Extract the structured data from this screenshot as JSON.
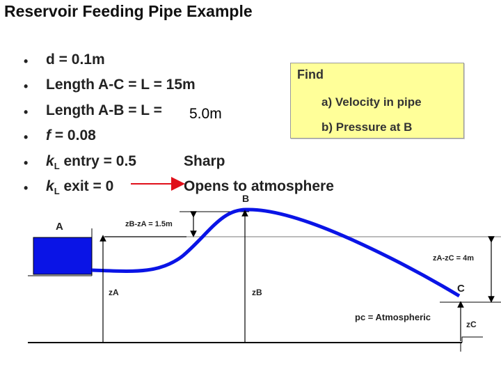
{
  "title": "Reservoir Feeding Pipe Example",
  "bullets": [
    {
      "prefix": "",
      "italic": "",
      "suffix": "d = 0.1m"
    },
    {
      "prefix": "",
      "italic": "",
      "suffix": "Length A-C = L = 15m"
    },
    {
      "prefix": "",
      "italic": "",
      "suffix": "Length A-B = L ="
    },
    {
      "prefix": "",
      "italic": "f",
      "suffix": " = 0.08"
    },
    {
      "prefix": "",
      "italic": "k",
      "sub": "L",
      "suffix": " entry = 0.5"
    },
    {
      "prefix": "",
      "italic": "k",
      "sub": "L",
      "suffix": " exit = 0"
    }
  ],
  "overlay_value": "5.0m",
  "entry_note": "Sharp",
  "exit_note": "Opens to atmosphere",
  "find": {
    "title": "Find",
    "items": [
      "a) Velocity in pipe",
      "b) Pressure at B"
    ]
  },
  "diagram": {
    "label_A": "A",
    "label_B": "B",
    "label_C": "C",
    "zA": "zA",
    "zB": "zB",
    "zC": "zC",
    "zB_minus_zA": "zB-zA = 1.5m",
    "zA_minus_zC": "zA-zC = 4m",
    "pc": "pc = Atmospheric"
  },
  "colors": {
    "reservoir": "#0a14e6",
    "pipe": "#0a14e6",
    "arrow": "#e0101a",
    "find_bg": "#ffff99"
  }
}
